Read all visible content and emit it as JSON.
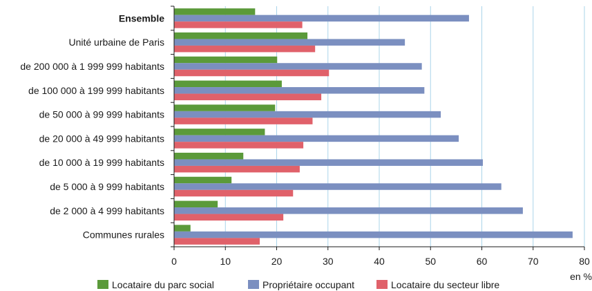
{
  "chart_data": {
    "type": "bar",
    "orientation": "horizontal",
    "categories": [
      "Ensemble",
      "Unité urbaine de Paris",
      "de 200 000 à 1 999 999 habitants",
      "de 100 000 à 199 999 habitants",
      "de 50 000 à 99 999 habitants",
      "de 20 000 à 49 999 habitants",
      "de 10 000 à 19 999 habitants",
      "de 5 000 à 9 999 habitants",
      "de 2 000 à 4 999 habitants",
      "Communes rurales"
    ],
    "bold_category": "Ensemble",
    "series": [
      {
        "name": "Locataire du parc social",
        "color": "#5b9a3a",
        "values": [
          15.8,
          26.0,
          20.1,
          21.0,
          19.7,
          17.7,
          13.5,
          11.2,
          8.5,
          3.2
        ]
      },
      {
        "name": "Propriétaire occupant",
        "color": "#7b8fc0",
        "values": [
          57.5,
          45.0,
          48.3,
          48.8,
          52.0,
          55.5,
          60.2,
          63.8,
          68.0,
          77.7
        ]
      },
      {
        "name": "Locataire du secteur libre",
        "color": "#e0616a",
        "values": [
          25.0,
          27.5,
          30.2,
          28.7,
          27.0,
          25.2,
          24.5,
          23.2,
          21.3,
          16.7
        ]
      }
    ],
    "xlim": [
      0,
      80
    ],
    "xticks": [
      "0",
      "10",
      "20",
      "30",
      "40",
      "50",
      "60",
      "70",
      "80"
    ],
    "unit_label": "en %",
    "grid": true,
    "legend_position": "bottom"
  }
}
